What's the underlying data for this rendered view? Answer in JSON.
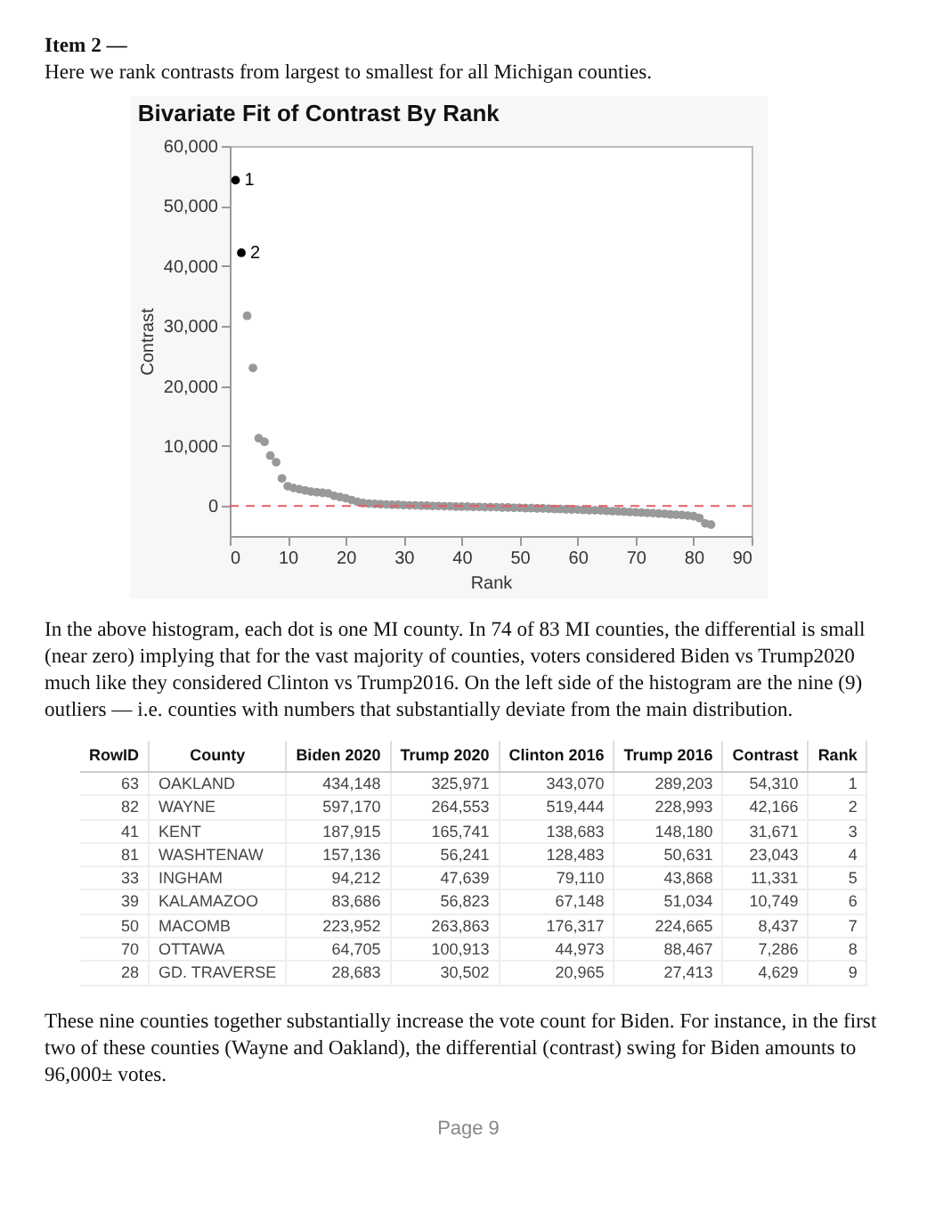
{
  "chart_data": [
    {
      "type": "scatter",
      "title": "Bivariate Fit of Contrast By Rank",
      "xlabel": "Rank",
      "ylabel": "Contrast",
      "annotations": [
        "Item 2 —",
        "Here we rank contrasts from largest to smallest for all Michigan counties.",
        "In the above histogram, each dot is one MI county. In 74 of 83 MI counties, the differential is small (near zero) implying that for the vast majority of counties, voters considered Biden vs Trump2020 much like they considered Clinton vs Trump2016.  On the left side of the histogram are the nine (9) outliers — i.e. counties with numbers that substantially deviate from the main distribution.",
        "These nine counties together substantially increase the vote count for Biden. For instance, in the first two of these counties (Wayne and Oakland), the differential (contrast) swing for Biden amounts to 96,000± votes.",
        "Page 9",
        {
          "text": "1",
          "x": 1,
          "y": 54300
        },
        {
          "text": "2",
          "x": 2,
          "y": 42200
        }
      ],
      "x": [
        1,
        2,
        3,
        4,
        5,
        6,
        7,
        8,
        9,
        10,
        11,
        12,
        13,
        14,
        15,
        16,
        17,
        18,
        19,
        20,
        21,
        22,
        23,
        24,
        25,
        26,
        27,
        28,
        29,
        30,
        31,
        32,
        33,
        34,
        35,
        36,
        37,
        38,
        39,
        40,
        41,
        42,
        43,
        44,
        45,
        46,
        47,
        48,
        49,
        50,
        51,
        52,
        53,
        54,
        55,
        56,
        57,
        58,
        59,
        60,
        61,
        62,
        63,
        64,
        65,
        66,
        67,
        68,
        69,
        70,
        71,
        72,
        73,
        74,
        75,
        76,
        77,
        78,
        79,
        80,
        81,
        82,
        83
      ],
      "values": [
        54300,
        42200,
        31700,
        23000,
        11300,
        10700,
        8400,
        7300,
        4600,
        3300,
        3000,
        2800,
        2600,
        2400,
        2300,
        2200,
        2100,
        1700,
        1500,
        1300,
        1000,
        700,
        500,
        400,
        350,
        300,
        250,
        200,
        200,
        150,
        100,
        100,
        50,
        50,
        0,
        0,
        -50,
        -50,
        -100,
        -100,
        -100,
        -150,
        -150,
        -200,
        -200,
        -200,
        -250,
        -250,
        -300,
        -300,
        -350,
        -350,
        -400,
        -400,
        -450,
        -500,
        -500,
        -550,
        -600,
        -600,
        -650,
        -700,
        -700,
        -750,
        -800,
        -850,
        -900,
        -950,
        -1000,
        -1050,
        -1100,
        -1150,
        -1200,
        -1250,
        -1300,
        -1400,
        -1450,
        -1500,
        -1600,
        -1700,
        -2000,
        -2900,
        -3100
      ],
      "colors": [
        "#000000",
        "#000000",
        "#999999",
        "#999999",
        "#999999",
        "#999999",
        "#999999",
        "#999999",
        "#999999",
        "#999999",
        "#999999",
        "#999999",
        "#999999",
        "#999999",
        "#999999",
        "#999999",
        "#999999",
        "#999999",
        "#999999",
        "#999999",
        "#999999",
        "#999999",
        "#999999",
        "#999999",
        "#999999",
        "#999999",
        "#999999",
        "#999999",
        "#999999",
        "#999999",
        "#999999",
        "#999999",
        "#999999",
        "#999999",
        "#999999",
        "#999999",
        "#999999",
        "#999999",
        "#999999",
        "#999999",
        "#999999",
        "#999999",
        "#999999",
        "#999999",
        "#999999",
        "#999999",
        "#999999",
        "#999999",
        "#999999",
        "#999999",
        "#999999",
        "#999999",
        "#999999",
        "#999999",
        "#999999",
        "#999999",
        "#999999",
        "#999999",
        "#999999",
        "#999999",
        "#999999",
        "#999999",
        "#999999",
        "#999999",
        "#999999",
        "#999999",
        "#999999",
        "#999999",
        "#999999",
        "#999999",
        "#999999",
        "#999999",
        "#999999",
        "#999999",
        "#999999",
        "#999999",
        "#999999",
        "#999999",
        "#999999",
        "#999999",
        "#999999",
        "#999999",
        "#999999"
      ],
      "xlim": [
        0,
        90
      ],
      "xticks": [
        0,
        10,
        20,
        30,
        40,
        50,
        60,
        70,
        80,
        90
      ],
      "ylim": [
        -5000,
        60000
      ],
      "yticks": [
        {
          "value": 0,
          "label": "0"
        },
        {
          "value": 10000,
          "label": "10,000"
        },
        {
          "value": 20000,
          "label": "20,000"
        },
        {
          "value": 30000,
          "label": "30,000"
        },
        {
          "value": 40000,
          "label": "40,000"
        },
        {
          "value": 50000,
          "label": "50,000"
        },
        {
          "value": 60000,
          "label": "60,000"
        }
      ],
      "ref_lines": [
        {
          "axis": "y",
          "value": 0,
          "color": "#e06060",
          "line_style": "dashed"
        }
      ],
      "marker": "circle"
    },
    {
      "type": "other",
      "categories": [
        "RowID",
        "County",
        "Biden 2020",
        "Trump 2020",
        "Clinton 2016",
        "Trump 2016",
        "Contrast",
        "Rank"
      ],
      "cell_labels": [
        [
          "63",
          "OAKLAND",
          "434,148",
          "325,971",
          "343,070",
          "289,203",
          "54,310",
          "1"
        ],
        [
          "82",
          "WAYNE",
          "597,170",
          "264,553",
          "519,444",
          "228,993",
          "42,166",
          "2"
        ],
        [
          "41",
          "KENT",
          "187,915",
          "165,741",
          "138,683",
          "148,180",
          "31,671",
          "3"
        ],
        [
          "81",
          "WASHTENAW",
          "157,136",
          "56,241",
          "128,483",
          "50,631",
          "23,043",
          "4"
        ],
        [
          "33",
          "INGHAM",
          "94,212",
          "47,639",
          "79,110",
          "43,868",
          "11,331",
          "5"
        ],
        [
          "39",
          "KALAMAZOO",
          "83,686",
          "56,823",
          "67,148",
          "51,034",
          "10,749",
          "6"
        ],
        [
          "50",
          "MACOMB",
          "223,952",
          "263,863",
          "176,317",
          "224,665",
          "8,437",
          "7"
        ],
        [
          "70",
          "OTTAWA",
          "64,705",
          "100,913",
          "44,973",
          "88,467",
          "7,286",
          "8"
        ],
        [
          "28",
          "GD. TRAVERSE",
          "28,683",
          "30,502",
          "20,965",
          "27,413",
          "4,629",
          "9"
        ]
      ]
    }
  ]
}
